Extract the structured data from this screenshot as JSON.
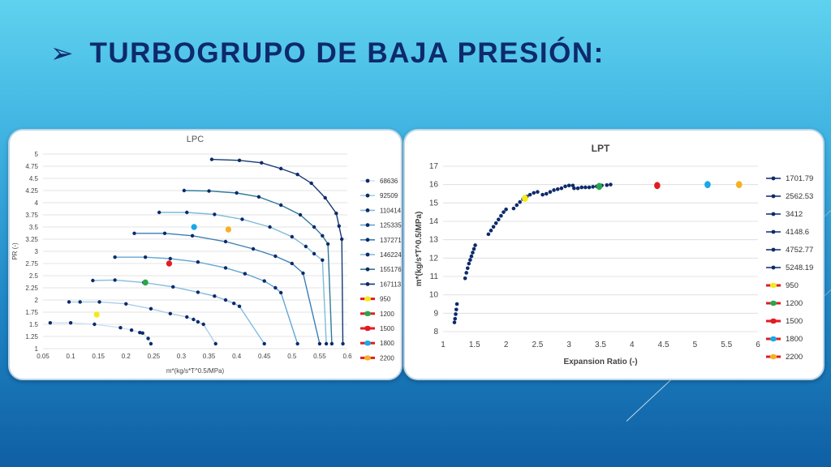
{
  "slide": {
    "title": "TURBOGRUPO DE BAJA PRESIÓN:",
    "bullet_icon": "arrow-bullet-icon"
  },
  "chart_data": [
    {
      "id": "lpc",
      "type": "line",
      "title": "LPC",
      "xlabel": "m*(kg/s*T^0.5/MPa)",
      "ylabel": "PR (-)",
      "xlim": [
        0.05,
        0.6
      ],
      "ylim": [
        1,
        5
      ],
      "x_ticks": [
        "0.05",
        "0.1",
        "0.15",
        "0.2",
        "0.25",
        "0.3",
        "0.35",
        "0.4",
        "0.45",
        "0.5",
        "0.55",
        "0.6"
      ],
      "y_ticks": [
        "1",
        "1.25",
        "1.5",
        "1.75",
        "2",
        "2.25",
        "2.5",
        "2.75",
        "3",
        "3.25",
        "3.5",
        "3.75",
        "4",
        "4.25",
        "4.5",
        "4.75",
        "5"
      ],
      "grid": true,
      "legend_position": "right",
      "series": [
        {
          "name": "68636",
          "color": "#cfe3f3",
          "points": [
            [
              0.063,
              1.53
            ],
            [
              0.1,
              1.53
            ],
            [
              0.143,
              1.5
            ],
            [
              0.19,
              1.43
            ],
            [
              0.21,
              1.38
            ],
            [
              0.225,
              1.33
            ],
            [
              0.23,
              1.32
            ],
            [
              0.24,
              1.21
            ],
            [
              0.245,
              1.1
            ]
          ]
        },
        {
          "name": "92509",
          "color": "#a9cfe9",
          "points": [
            [
              0.097,
              1.96
            ],
            [
              0.117,
              1.96
            ],
            [
              0.152,
              1.96
            ],
            [
              0.2,
              1.92
            ],
            [
              0.245,
              1.82
            ],
            [
              0.28,
              1.72
            ],
            [
              0.31,
              1.65
            ],
            [
              0.322,
              1.6
            ],
            [
              0.33,
              1.55
            ],
            [
              0.34,
              1.5
            ],
            [
              0.362,
              1.1
            ]
          ]
        },
        {
          "name": "110414",
          "color": "#85bce0",
          "points": [
            [
              0.14,
              2.4
            ],
            [
              0.18,
              2.41
            ],
            [
              0.232,
              2.36
            ],
            [
              0.285,
              2.27
            ],
            [
              0.33,
              2.16
            ],
            [
              0.36,
              2.08
            ],
            [
              0.38,
              2.0
            ],
            [
              0.395,
              1.93
            ],
            [
              0.405,
              1.87
            ],
            [
              0.45,
              1.1
            ]
          ]
        },
        {
          "name": "125335",
          "color": "#64a7d4",
          "points": [
            [
              0.18,
              2.88
            ],
            [
              0.235,
              2.88
            ],
            [
              0.28,
              2.85
            ],
            [
              0.33,
              2.78
            ],
            [
              0.38,
              2.66
            ],
            [
              0.415,
              2.54
            ],
            [
              0.45,
              2.39
            ],
            [
              0.47,
              2.25
            ],
            [
              0.48,
              2.15
            ],
            [
              0.51,
              1.1
            ]
          ]
        },
        {
          "name": "137271",
          "color": "#3c7fb8",
          "points": [
            [
              0.215,
              3.37
            ],
            [
              0.27,
              3.37
            ],
            [
              0.32,
              3.32
            ],
            [
              0.38,
              3.2
            ],
            [
              0.43,
              3.05
            ],
            [
              0.47,
              2.9
            ],
            [
              0.5,
              2.75
            ],
            [
              0.52,
              2.55
            ],
            [
              0.55,
              1.1
            ]
          ]
        },
        {
          "name": "146224",
          "color": "#7dbbd9",
          "points": [
            [
              0.26,
              3.8
            ],
            [
              0.31,
              3.8
            ],
            [
              0.36,
              3.76
            ],
            [
              0.41,
              3.66
            ],
            [
              0.46,
              3.5
            ],
            [
              0.5,
              3.3
            ],
            [
              0.525,
              3.1
            ],
            [
              0.54,
              2.95
            ],
            [
              0.555,
              2.82
            ],
            [
              0.562,
              1.1
            ]
          ]
        },
        {
          "name": "155176",
          "color": "#2f7a9c",
          "points": [
            [
              0.305,
              4.25
            ],
            [
              0.35,
              4.24
            ],
            [
              0.4,
              4.2
            ],
            [
              0.44,
              4.12
            ],
            [
              0.48,
              3.95
            ],
            [
              0.515,
              3.75
            ],
            [
              0.54,
              3.5
            ],
            [
              0.555,
              3.32
            ],
            [
              0.565,
              3.15
            ],
            [
              0.572,
              1.1
            ]
          ]
        },
        {
          "name": "167113",
          "color": "#183a74",
          "points": [
            [
              0.355,
              4.89
            ],
            [
              0.405,
              4.87
            ],
            [
              0.445,
              4.82
            ],
            [
              0.48,
              4.7
            ],
            [
              0.51,
              4.58
            ],
            [
              0.535,
              4.4
            ],
            [
              0.56,
              4.1
            ],
            [
              0.58,
              3.78
            ],
            [
              0.585,
              3.52
            ],
            [
              0.59,
              3.25
            ],
            [
              0.592,
              1.1
            ]
          ]
        }
      ],
      "markers": [
        {
          "name": "950",
          "color": "#f3ea1b",
          "x": 0.147,
          "y": 1.7
        },
        {
          "name": "1200",
          "color": "#2aa64a",
          "x": 0.235,
          "y": 2.36
        },
        {
          "name": "1500",
          "color": "#e21b23",
          "x": 0.278,
          "y": 2.75
        },
        {
          "name": "1800",
          "color": "#19a8e8",
          "x": 0.323,
          "y": 3.5
        },
        {
          "name": "2200",
          "color": "#f6b021",
          "x": 0.385,
          "y": 3.45
        }
      ]
    },
    {
      "id": "lpt",
      "type": "scatter",
      "title": "LPT",
      "xlabel": "Expansion Ratio (-)",
      "ylabel": "m*(kg/s*T^0.5/MPa)",
      "xlim": [
        1,
        6
      ],
      "ylim": [
        8,
        17
      ],
      "x_ticks": [
        "1",
        "1.5",
        "2",
        "2.5",
        "3",
        "3.5",
        "4",
        "4.5",
        "5",
        "5.5",
        "6"
      ],
      "y_ticks": [
        "8",
        "9",
        "10",
        "11",
        "12",
        "13",
        "14",
        "15",
        "16",
        "17"
      ],
      "grid": true,
      "legend_position": "right",
      "series": [
        {
          "name": "1701.79",
          "color": "#0d2a6a",
          "points": [
            [
              1.18,
              8.5
            ],
            [
              1.19,
              8.7
            ],
            [
              1.2,
              8.95
            ],
            [
              1.21,
              9.2
            ],
            [
              1.22,
              9.5
            ]
          ]
        },
        {
          "name": "2562.53",
          "color": "#0d2a6a",
          "points": [
            [
              1.35,
              10.9
            ],
            [
              1.37,
              11.2
            ],
            [
              1.39,
              11.45
            ],
            [
              1.41,
              11.7
            ],
            [
              1.43,
              11.9
            ],
            [
              1.45,
              12.1
            ],
            [
              1.47,
              12.3
            ],
            [
              1.49,
              12.5
            ],
            [
              1.51,
              12.7
            ]
          ]
        },
        {
          "name": "3412",
          "color": "#0d2a6a",
          "points": [
            [
              1.72,
              13.3
            ],
            [
              1.76,
              13.5
            ],
            [
              1.8,
              13.7
            ],
            [
              1.84,
              13.9
            ],
            [
              1.88,
              14.1
            ],
            [
              1.92,
              14.3
            ],
            [
              1.96,
              14.5
            ],
            [
              2.0,
              14.65
            ]
          ]
        },
        {
          "name": "4148.6",
          "color": "#0d2a6a",
          "points": [
            [
              2.12,
              14.7
            ],
            [
              2.17,
              14.88
            ],
            [
              2.22,
              15.05
            ],
            [
              2.27,
              15.2
            ],
            [
              2.33,
              15.35
            ],
            [
              2.38,
              15.45
            ],
            [
              2.44,
              15.55
            ],
            [
              2.5,
              15.6
            ]
          ]
        },
        {
          "name": "4752.77",
          "color": "#0d2a6a",
          "points": [
            [
              2.58,
              15.45
            ],
            [
              2.64,
              15.5
            ],
            [
              2.7,
              15.6
            ],
            [
              2.76,
              15.7
            ],
            [
              2.82,
              15.75
            ],
            [
              2.88,
              15.8
            ],
            [
              2.94,
              15.9
            ],
            [
              3.0,
              15.95
            ],
            [
              3.06,
              15.95
            ]
          ]
        },
        {
          "name": "5248.19",
          "color": "#0d2a6a",
          "points": [
            [
              3.08,
              15.8
            ],
            [
              3.14,
              15.8
            ],
            [
              3.2,
              15.85
            ],
            [
              3.26,
              15.85
            ],
            [
              3.32,
              15.85
            ],
            [
              3.38,
              15.88
            ],
            [
              3.44,
              15.9
            ],
            [
              3.52,
              15.95
            ],
            [
              3.6,
              15.97
            ],
            [
              3.66,
              16.0
            ]
          ]
        }
      ],
      "markers": [
        {
          "name": "950",
          "color": "#f3ea1b",
          "x": 2.3,
          "y": 15.25
        },
        {
          "name": "1200",
          "color": "#2aa64a",
          "x": 3.48,
          "y": 15.9
        },
        {
          "name": "1500",
          "color": "#e21b23",
          "x": 4.4,
          "y": 15.95
        },
        {
          "name": "1800",
          "color": "#19a8e8",
          "x": 5.2,
          "y": 16.0
        },
        {
          "name": "2200",
          "color": "#f6b021",
          "x": 5.7,
          "y": 16.0
        }
      ]
    }
  ]
}
